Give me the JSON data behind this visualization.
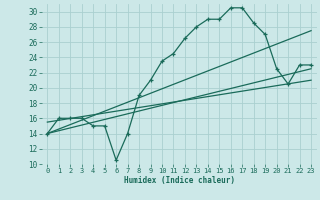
{
  "bg_color": "#cce8e8",
  "grid_color": "#aad0d0",
  "line_color": "#1a6b5a",
  "xlabel": "Humidex (Indice chaleur)",
  "xlim": [
    -0.5,
    23.5
  ],
  "ylim": [
    10,
    31
  ],
  "yticks": [
    10,
    12,
    14,
    16,
    18,
    20,
    22,
    24,
    26,
    28,
    30
  ],
  "xticks": [
    0,
    1,
    2,
    3,
    4,
    5,
    6,
    7,
    8,
    9,
    10,
    11,
    12,
    13,
    14,
    15,
    16,
    17,
    18,
    19,
    20,
    21,
    22,
    23
  ],
  "line1_x": [
    0,
    1,
    2,
    3,
    4,
    5,
    6,
    7,
    8,
    9,
    10,
    11,
    12,
    13,
    14,
    15,
    16,
    17,
    18,
    19,
    20,
    21,
    22,
    23
  ],
  "line1_y": [
    14.0,
    16.0,
    16.0,
    16.0,
    15.0,
    15.0,
    10.5,
    14.0,
    19.0,
    21.0,
    23.5,
    24.5,
    26.5,
    28.0,
    29.0,
    29.0,
    30.5,
    30.5,
    28.5,
    27.0,
    22.5,
    20.5,
    23.0,
    23.0
  ],
  "line2_x": [
    0,
    23
  ],
  "line2_y": [
    14.0,
    27.5
  ],
  "line3_x": [
    0,
    23
  ],
  "line3_y": [
    14.0,
    22.5
  ],
  "line4_x": [
    0,
    23
  ],
  "line4_y": [
    15.5,
    21.0
  ]
}
